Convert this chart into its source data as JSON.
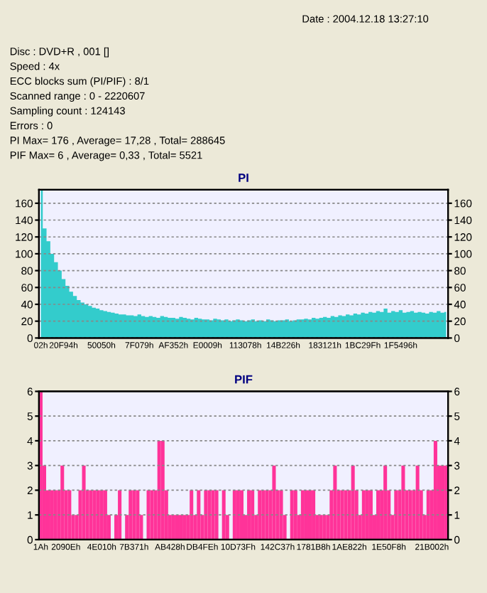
{
  "chart_data": [
    {
      "type": "area",
      "title": "PI",
      "annotations": [
        "Date : 2004.12.18 13:27:10",
        "Disc : DVD+R , 001 []",
        "Speed : 4x",
        "ECC blocks sum (PI/PIF) : 8/1",
        "Scanned range : 0 - 2220607",
        "Sampling count : 124143",
        "Errors : 0",
        "PI Max= 176 , Average= 17,28 , Total= 288645",
        "PIF Max= 6 , Average= 0,33 , Total= 5521"
      ],
      "categories": [
        "02h",
        null,
        null,
        null,
        null,
        null,
        "20F94h",
        null,
        null,
        null,
        null,
        null,
        null,
        null,
        null,
        null,
        "50050h",
        null,
        null,
        null,
        null,
        null,
        null,
        null,
        null,
        null,
        "7F079h",
        null,
        null,
        null,
        null,
        null,
        null,
        null,
        null,
        "AF352h",
        null,
        null,
        null,
        null,
        null,
        null,
        null,
        null,
        "E0009h",
        null,
        null,
        null,
        null,
        null,
        null,
        null,
        null,
        null,
        "113078h",
        null,
        null,
        null,
        null,
        null,
        null,
        null,
        null,
        null,
        "14B226h",
        null,
        null,
        null,
        null,
        null,
        null,
        null,
        null,
        null,
        null,
        "183121h",
        null,
        null,
        null,
        null,
        null,
        null,
        null,
        null,
        null,
        "1BC29Fh",
        null,
        null,
        null,
        null,
        null,
        null,
        null,
        null,
        null,
        "1F5496h",
        null,
        null,
        null,
        null,
        null,
        null,
        null,
        null,
        null,
        null,
        null,
        null
      ],
      "values": [
        176,
        130,
        115,
        100,
        90,
        80,
        70,
        62,
        55,
        50,
        45,
        42,
        40,
        38,
        36,
        35,
        33,
        32,
        31,
        30,
        29,
        28,
        28,
        27,
        27,
        26,
        28,
        26,
        25,
        26,
        25,
        24,
        26,
        25,
        24,
        24,
        23,
        25,
        24,
        23,
        22,
        24,
        23,
        22,
        22,
        21,
        23,
        22,
        21,
        22,
        20,
        21,
        22,
        21,
        20,
        21,
        22,
        20,
        21,
        20,
        22,
        21,
        20,
        21,
        21,
        22,
        20,
        21,
        22,
        22,
        23,
        22,
        24,
        23,
        24,
        25,
        24,
        26,
        25,
        27,
        26,
        28,
        27,
        29,
        28,
        30,
        29,
        31,
        30,
        32,
        31,
        35,
        30,
        32,
        31,
        33,
        30,
        31,
        32,
        30,
        31,
        30,
        29,
        31,
        30,
        32,
        30,
        31
      ],
      "color": "#33cccc",
      "ylim": [
        0,
        176
      ],
      "yticks": [
        0,
        20,
        40,
        60,
        80,
        100,
        120,
        140,
        160
      ],
      "y2lim": [
        0,
        176
      ],
      "y2ticks": [
        0,
        20,
        40,
        60,
        80,
        100,
        120,
        140,
        160
      ],
      "grid": "y"
    },
    {
      "type": "bar",
      "title": "PIF",
      "categories": [
        "1Ah",
        null,
        null,
        null,
        null,
        null,
        null,
        "2090Eh",
        null,
        null,
        null,
        null,
        null,
        null,
        null,
        null,
        null,
        "4E010h",
        null,
        null,
        null,
        null,
        null,
        null,
        null,
        null,
        "7B371h",
        null,
        null,
        null,
        null,
        null,
        null,
        null,
        null,
        null,
        "AB428h",
        null,
        null,
        null,
        null,
        null,
        null,
        null,
        null,
        "DB4FEh",
        null,
        null,
        null,
        null,
        null,
        null,
        null,
        null,
        null,
        "10D73Fh",
        null,
        null,
        null,
        null,
        null,
        null,
        null,
        null,
        null,
        null,
        "142C37h",
        null,
        null,
        null,
        null,
        null,
        null,
        null,
        null,
        null,
        "1781B8h",
        null,
        null,
        null,
        null,
        null,
        null,
        null,
        null,
        null,
        "1AE822h",
        null,
        null,
        null,
        null,
        null,
        null,
        null,
        null,
        null,
        null,
        "1E50F8h",
        null,
        null,
        null,
        null,
        null,
        null,
        null,
        null,
        null,
        null,
        null,
        "21B002h",
        null,
        null,
        null,
        null
      ],
      "values": [
        6,
        3,
        2,
        2,
        2,
        2,
        3,
        2,
        2,
        1,
        1,
        2,
        3,
        2,
        2,
        2,
        2,
        2,
        2,
        1,
        0,
        1,
        2,
        0,
        1,
        2,
        2,
        2,
        1,
        0,
        2,
        2,
        2,
        4,
        4,
        2,
        1,
        1,
        1,
        1,
        1,
        1,
        2,
        1,
        2,
        1,
        2,
        2,
        2,
        2,
        0,
        2,
        1,
        0,
        2,
        2,
        2,
        1,
        2,
        2,
        1,
        2,
        2,
        2,
        2,
        3,
        2,
        2,
        1,
        0,
        2,
        2,
        1,
        2,
        2,
        2,
        2,
        1,
        1,
        1,
        1,
        2,
        3,
        2,
        2,
        2,
        2,
        3,
        2,
        1,
        2,
        2,
        2,
        1,
        2,
        2,
        3,
        2,
        1,
        2,
        2,
        3,
        2,
        2,
        2,
        3,
        2,
        1,
        2,
        2,
        4,
        3,
        3,
        3
      ],
      "color": "#ff3399",
      "ylim": [
        0,
        6
      ],
      "yticks": [
        0,
        1,
        2,
        3,
        4,
        5,
        6
      ],
      "y2lim": [
        0,
        6
      ],
      "y2ticks": [
        0,
        1,
        2,
        3,
        4,
        5,
        6
      ],
      "grid": "y"
    }
  ]
}
